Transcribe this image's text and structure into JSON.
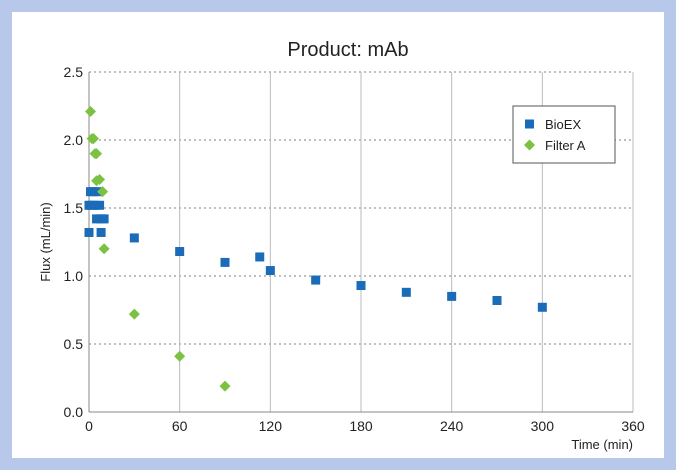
{
  "chart_data": {
    "type": "scatter",
    "title": "Product: mAb",
    "xlabel": "Time (min)",
    "ylabel": "Flux (mL/min)",
    "xlim": [
      0,
      360
    ],
    "ylim": [
      0,
      2.5
    ],
    "xticks": [
      0,
      60,
      120,
      180,
      240,
      300,
      360
    ],
    "yticks": [
      0.0,
      0.5,
      1.0,
      1.5,
      2.0,
      2.5
    ],
    "ytick_labels": [
      "0.0",
      "0.5",
      "1.0",
      "1.5",
      "2.0",
      "2.5"
    ],
    "grid": {
      "x": "dashed vertical lines",
      "y": "dotted horizontal lines"
    },
    "legend_position": "top-right",
    "series": [
      {
        "name": "BioEX",
        "marker": "square",
        "color": "#1a6bb8",
        "points": [
          [
            0,
            1.32
          ],
          [
            0,
            1.52
          ],
          [
            1,
            1.62
          ],
          [
            2,
            1.52
          ],
          [
            3,
            1.62
          ],
          [
            4,
            1.52
          ],
          [
            5,
            1.42
          ],
          [
            6,
            1.62
          ],
          [
            7,
            1.52
          ],
          [
            8,
            1.42
          ],
          [
            8,
            1.32
          ],
          [
            10,
            1.42
          ],
          [
            30,
            1.28
          ],
          [
            60,
            1.18
          ],
          [
            90,
            1.1
          ],
          [
            113,
            1.14
          ],
          [
            120,
            1.04
          ],
          [
            150,
            0.97
          ],
          [
            180,
            0.93
          ],
          [
            210,
            0.88
          ],
          [
            240,
            0.85
          ],
          [
            270,
            0.82
          ],
          [
            300,
            0.77
          ]
        ]
      },
      {
        "name": "Filter A",
        "marker": "diamond",
        "color": "#7cc242",
        "points": [
          [
            1,
            2.21
          ],
          [
            2,
            2.01
          ],
          [
            3,
            2.01
          ],
          [
            4,
            1.9
          ],
          [
            5,
            1.9
          ],
          [
            5,
            1.7
          ],
          [
            7,
            1.71
          ],
          [
            9,
            1.62
          ],
          [
            10,
            1.2
          ],
          [
            30,
            0.72
          ],
          [
            60,
            0.41
          ],
          [
            90,
            0.19
          ]
        ]
      }
    ]
  }
}
